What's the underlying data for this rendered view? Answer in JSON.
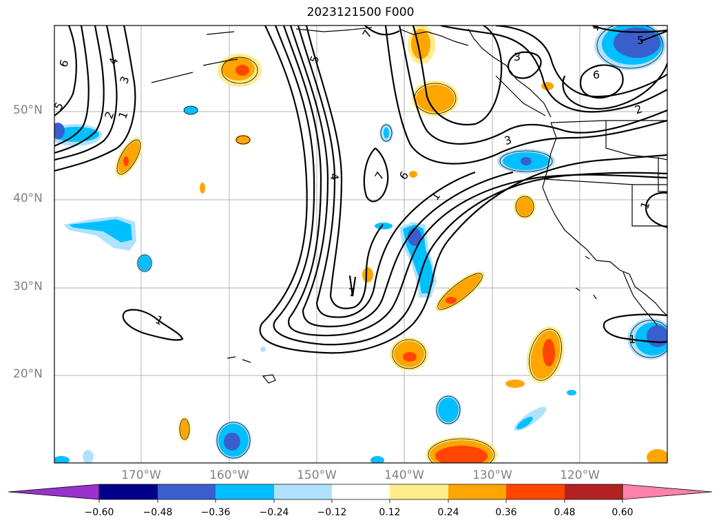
{
  "title": "2023121500 F000",
  "lat_labels": [
    "20°N",
    "30°N",
    "40°N",
    "50°N"
  ],
  "lon_labels": [
    "170°W",
    "160°W",
    "150°W",
    "140°W",
    "130°W",
    "120°W"
  ],
  "colorbar": {
    "ticks": [
      "−0.60",
      "−0.48",
      "−0.36",
      "−0.24",
      "−0.12",
      "0.12",
      "0.24",
      "0.36",
      "0.48",
      "0.60"
    ],
    "colors": [
      "#9932cc",
      "#00008b",
      "#3a5fcd",
      "#00bfff",
      "#b0e2ff",
      "#ffffff",
      "#ffec8b",
      "#ffa500",
      "#ff4500",
      "#b22222",
      "#ff82ab"
    ]
  },
  "contour_labels": [
    "6",
    "4",
    "3",
    "5",
    "2",
    "1",
    "7",
    "5",
    "4",
    "7",
    "6",
    "1",
    "7",
    "3",
    "6",
    "5",
    "2",
    "3",
    "1",
    "1",
    "1",
    "4"
  ]
}
